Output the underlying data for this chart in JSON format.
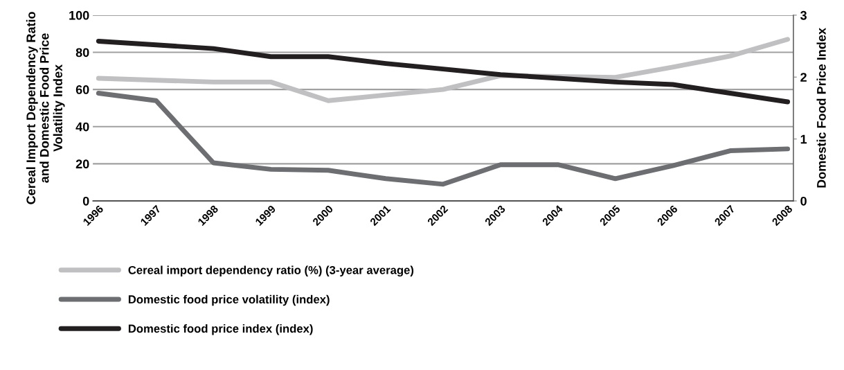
{
  "chart_data": {
    "type": "line",
    "ylabel": "Cereal Import Dependency Ratio\nand Domestic Food Price\nVolatility Index",
    "y2label": "Domestic Food Price Index",
    "categories": [
      "1996",
      "1997",
      "1998",
      "1999",
      "2000",
      "2001",
      "2002",
      "2003",
      "2004",
      "2005",
      "2006",
      "2007",
      "2008"
    ],
    "series": [
      {
        "name": "Cereal import dependency ratio (%) (3-year average)",
        "color": "#c0c0c2",
        "values": [
          66,
          65,
          64,
          64,
          54,
          57,
          60,
          67.5,
          67,
          66.5,
          72,
          78,
          87
        ]
      },
      {
        "name": "Domestic food price volatility (index)",
        "color": "#6d6e71",
        "values": [
          58,
          54,
          20.5,
          17,
          16.5,
          12,
          9,
          19.5,
          19.5,
          12,
          19,
          27,
          28
        ]
      },
      {
        "name": "Domestic food price index (index)",
        "color": "#231f20",
        "axis": "y2",
        "values": [
          2.58,
          2.52,
          2.46,
          2.33,
          2.33,
          2.22,
          2.13,
          2.04,
          1.98,
          1.92,
          1.88,
          1.74,
          1.6
        ]
      }
    ],
    "ylim": [
      0,
      100
    ],
    "yticks": [
      0,
      20,
      40,
      60,
      80,
      100
    ],
    "y2lim": [
      0,
      3
    ],
    "y2ticks": [
      0,
      1,
      2,
      3
    ],
    "grid": "y",
    "legend": "bottom",
    "marker": "none",
    "line_style": "solid"
  }
}
